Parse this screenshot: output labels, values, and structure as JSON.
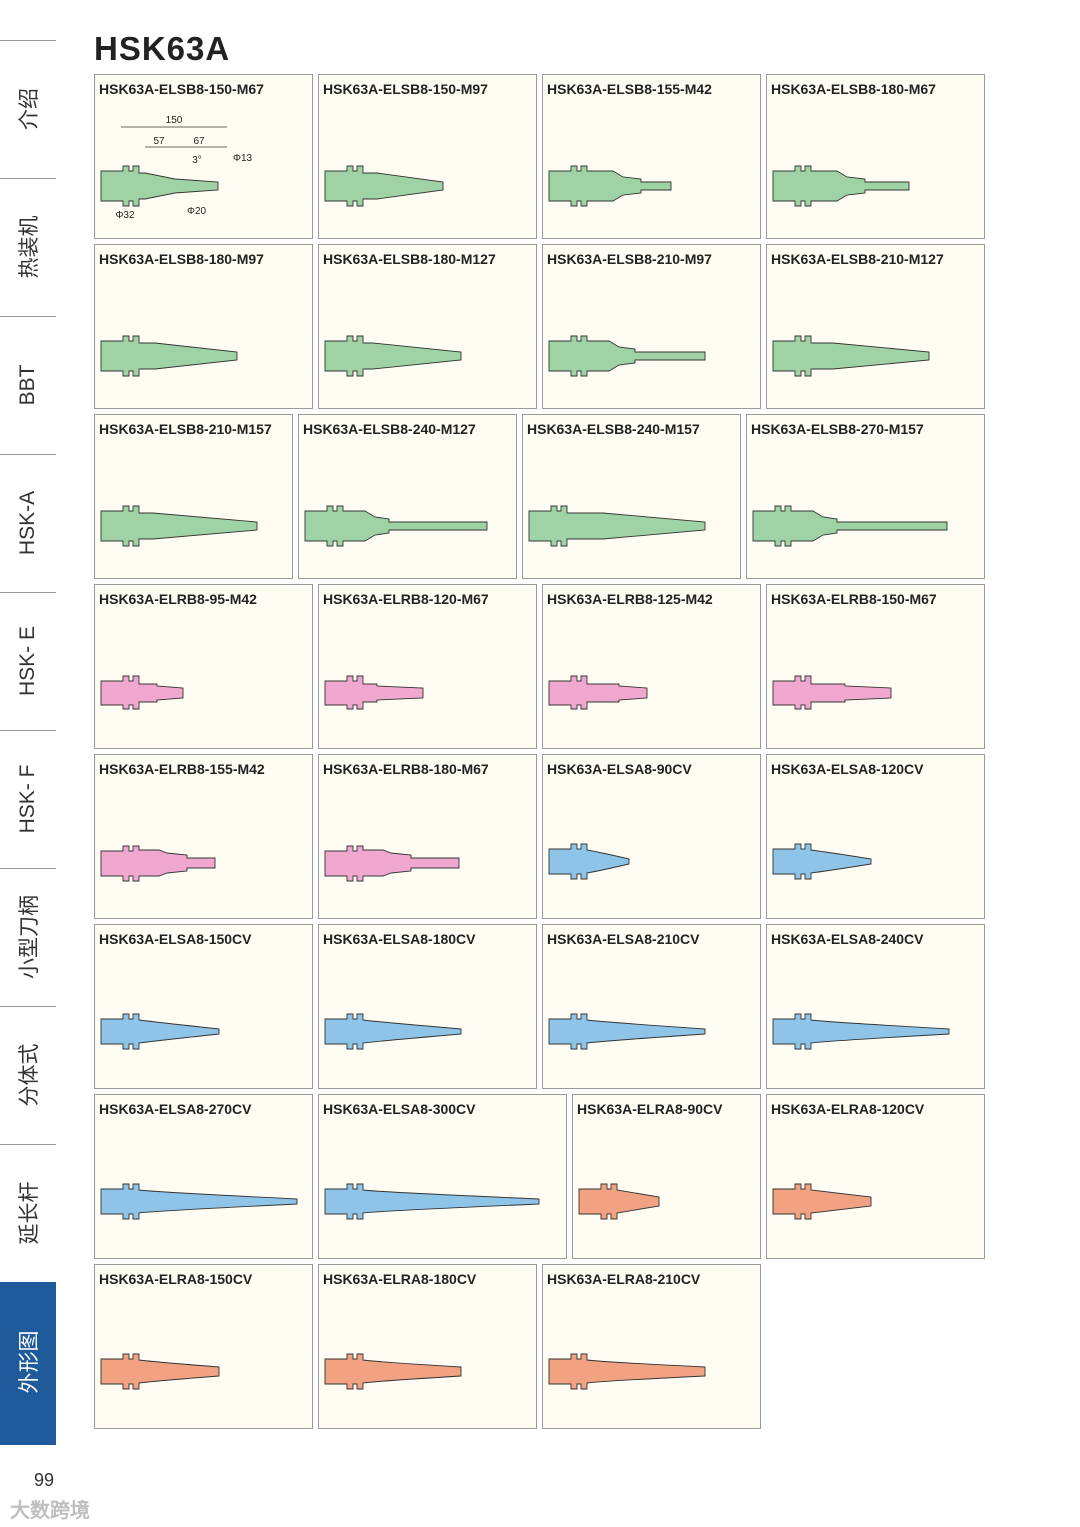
{
  "page": {
    "title": "HSK63A",
    "page_number": "99",
    "watermark": "大数跨境"
  },
  "sidebar": {
    "tabs": [
      {
        "label": "介绍",
        "active": false
      },
      {
        "label": "热装机",
        "active": false
      },
      {
        "label": "BBT",
        "active": false
      },
      {
        "label": "HSK-A",
        "active": false
      },
      {
        "label": "HSK- E",
        "active": false
      },
      {
        "label": "HSK- F",
        "active": false
      },
      {
        "label": "小型刀柄",
        "active": false
      },
      {
        "label": "分体式",
        "active": false
      },
      {
        "label": "延长杆",
        "active": false
      },
      {
        "label": "外形图",
        "active": true
      }
    ],
    "active_color": "#1f5a9b"
  },
  "colors": {
    "ELSB8": "#9fd3a6",
    "ELRB8": "#f0a8cf",
    "ELSA8": "#8ec4e8",
    "ELRA8": "#f0a283"
  },
  "cards": [
    {
      "title": "HSK63A-ELSB8-150-M67",
      "kind": "ELSB8",
      "dims": {
        "total": "150",
        "seg1": "57",
        "seg2": "67",
        "angle": "3°",
        "tip": "Φ13",
        "d1": "Φ32",
        "d2": "Φ20"
      }
    },
    {
      "title": "HSK63A-ELSB8-150-M97",
      "kind": "ELSB8"
    },
    {
      "title": "HSK63A-ELSB8-155-M42",
      "kind": "ELSB8"
    },
    {
      "title": "HSK63A-ELSB8-180-M67",
      "kind": "ELSB8"
    },
    {
      "title": "HSK63A-ELSB8-180-M97",
      "kind": "ELSB8"
    },
    {
      "title": "HSK63A-ELSB8-180-M127",
      "kind": "ELSB8"
    },
    {
      "title": "HSK63A-ELSB8-210-M97",
      "kind": "ELSB8"
    },
    {
      "title": "HSK63A-ELSB8-210-M127",
      "kind": "ELSB8"
    },
    {
      "title": "HSK63A-ELSB8-210-M157",
      "kind": "ELSB8"
    },
    {
      "title": "HSK63A-ELSB8-240-M127",
      "kind": "ELSB8"
    },
    {
      "title": "HSK63A-ELSB8-240-M157",
      "kind": "ELSB8"
    },
    {
      "title": "HSK63A-ELSB8-270-M157",
      "kind": "ELSB8"
    },
    {
      "title": "HSK63A-ELRB8-95-M42",
      "kind": "ELRB8"
    },
    {
      "title": "HSK63A-ELRB8-120-M67",
      "kind": "ELRB8"
    },
    {
      "title": "HSK63A-ELRB8-125-M42",
      "kind": "ELRB8"
    },
    {
      "title": "HSK63A-ELRB8-150-M67",
      "kind": "ELRB8"
    },
    {
      "title": "HSK63A-ELRB8-155-M42",
      "kind": "ELRB8"
    },
    {
      "title": "HSK63A-ELRB8-180-M67",
      "kind": "ELRB8"
    },
    {
      "title": "HSK63A-ELSA8-90CV",
      "kind": "ELSA8"
    },
    {
      "title": "HSK63A-ELSA8-120CV",
      "kind": "ELSA8"
    },
    {
      "title": "HSK63A-ELSA8-150CV",
      "kind": "ELSA8"
    },
    {
      "title": "HSK63A-ELSA8-180CV",
      "kind": "ELSA8"
    },
    {
      "title": "HSK63A-ELSA8-210CV",
      "kind": "ELSA8"
    },
    {
      "title": "HSK63A-ELSA8-240CV",
      "kind": "ELSA8"
    },
    {
      "title": "HSK63A-ELSA8-270CV",
      "kind": "ELSA8"
    },
    {
      "title": "HSK63A-ELSA8-300CV",
      "kind": "ELSA8"
    },
    {
      "title": "HSK63A-ELRA8-90CV",
      "kind": "ELRA8"
    },
    {
      "title": "HSK63A-ELRA8-120CV",
      "kind": "ELRA8"
    },
    {
      "title": "HSK63A-ELRA8-150CV",
      "kind": "ELRA8"
    },
    {
      "title": "HSK63A-ELRA8-180CV",
      "kind": "ELRA8"
    },
    {
      "title": "HSK63A-ELRA8-210CV",
      "kind": "ELRA8"
    }
  ]
}
